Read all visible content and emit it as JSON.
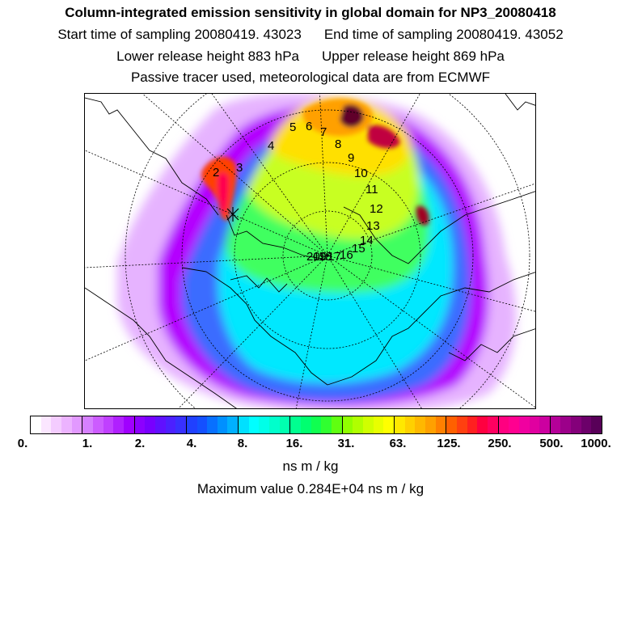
{
  "header": {
    "title": "Column-integrated emission sensitivity in global domain for NP3_20080418",
    "start_label": "Start time of sampling 20080419. 43023",
    "end_label": "End time of sampling 20080419. 43052",
    "lower_label": "Lower release height  883 hPa",
    "upper_label": "Upper release height  869 hPa",
    "note": "Passive tracer used, meteorological data are from ECMWF"
  },
  "map": {
    "projection": "polar stereographic (north pole)",
    "field": "column-integrated emission sensitivity",
    "track_labels": [
      "2",
      "3",
      "4",
      "5",
      "6",
      "7",
      "8",
      "9",
      "10",
      "11",
      "12",
      "13",
      "14",
      "15",
      "16",
      "17",
      "18",
      "19",
      "20"
    ],
    "colors": {
      "white": "#ffffff",
      "lavender": "#e6b3ff",
      "violet": "#b400ff",
      "blue": "#3060ff",
      "cyan": "#00f0ff",
      "green": "#30ff50",
      "yellow": "#ffe000",
      "orange": "#ff8000",
      "red": "#ff0030",
      "dark_magenta": "#60002a"
    }
  },
  "colorbar": {
    "ticks": [
      "0.",
      "1.",
      "2.",
      "4.",
      "8.",
      "16.",
      "31.",
      "63.",
      "125.",
      "250.",
      "500.",
      "1000."
    ],
    "colors": [
      "#ffffff",
      "#fbe6ff",
      "#f4ccff",
      "#ecb3ff",
      "#e299ff",
      "#d680ff",
      "#cc5cff",
      "#c040ff",
      "#b020ff",
      "#a000ff",
      "#8c00ff",
      "#7800ff",
      "#6010ff",
      "#4c20ff",
      "#3830ff",
      "#2040ff",
      "#1450ff",
      "#0870ff",
      "#0090ff",
      "#00b0ff",
      "#00e0ff",
      "#00ffff",
      "#00ffe8",
      "#00ffcc",
      "#00ffb0",
      "#00ff90",
      "#00ff70",
      "#10ff50",
      "#30ff30",
      "#60ff10",
      "#90ff00",
      "#b0ff00",
      "#d0ff00",
      "#e8ff00",
      "#ffff00",
      "#ffe800",
      "#ffd000",
      "#ffb800",
      "#ffa000",
      "#ff8000",
      "#ff6000",
      "#ff4010",
      "#ff2020",
      "#ff0040",
      "#ff0060",
      "#ff0080",
      "#ff0090",
      "#f000a0",
      "#e000a0",
      "#cc00a0",
      "#b40098",
      "#9c008a",
      "#84007a",
      "#6c006a",
      "#580058"
    ],
    "unit": "ns m / kg",
    "max_value": "Maximum value  0.284E+04 ns m / kg"
  }
}
